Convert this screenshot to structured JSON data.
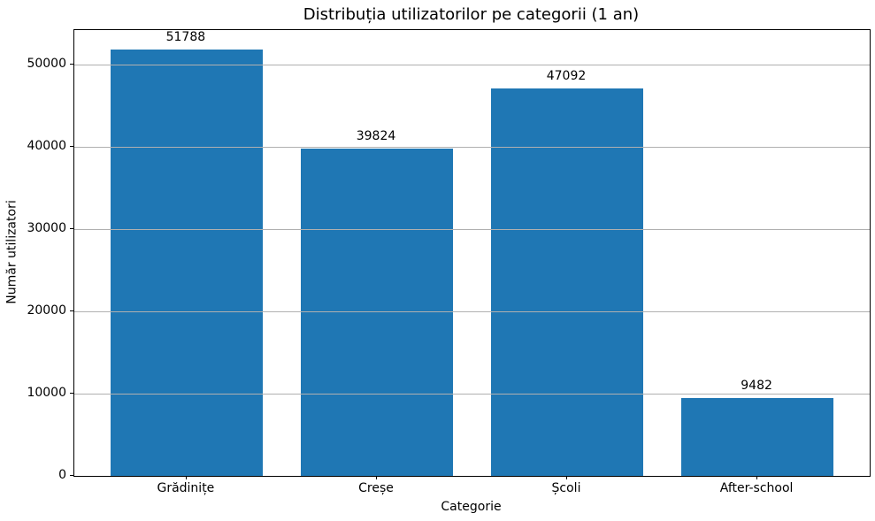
{
  "chart_data": {
    "type": "bar",
    "title": "Distribuția utilizatorilor pe categorii (1 an)",
    "xlabel": "Categorie",
    "ylabel": "Număr utilizatori",
    "categories": [
      "Grădinițe",
      "Creșe",
      "Școli",
      "After-school"
    ],
    "values": [
      51788,
      39824,
      47092,
      9482
    ],
    "value_labels": [
      "51788",
      "39824",
      "47092",
      "9482"
    ],
    "yticks": [
      0,
      10000,
      20000,
      30000,
      40000,
      50000
    ],
    "ytick_labels": [
      "0",
      "10000",
      "20000",
      "30000",
      "40000",
      "50000"
    ],
    "ylim": [
      0,
      54200
    ],
    "xlim": [
      -0.59,
      3.59
    ],
    "bar_width_units": 0.8,
    "bar_color": "#1f77b4",
    "grid_color": "#b0b0b0",
    "grid": "horizontal-above-bars",
    "legend": "none"
  }
}
